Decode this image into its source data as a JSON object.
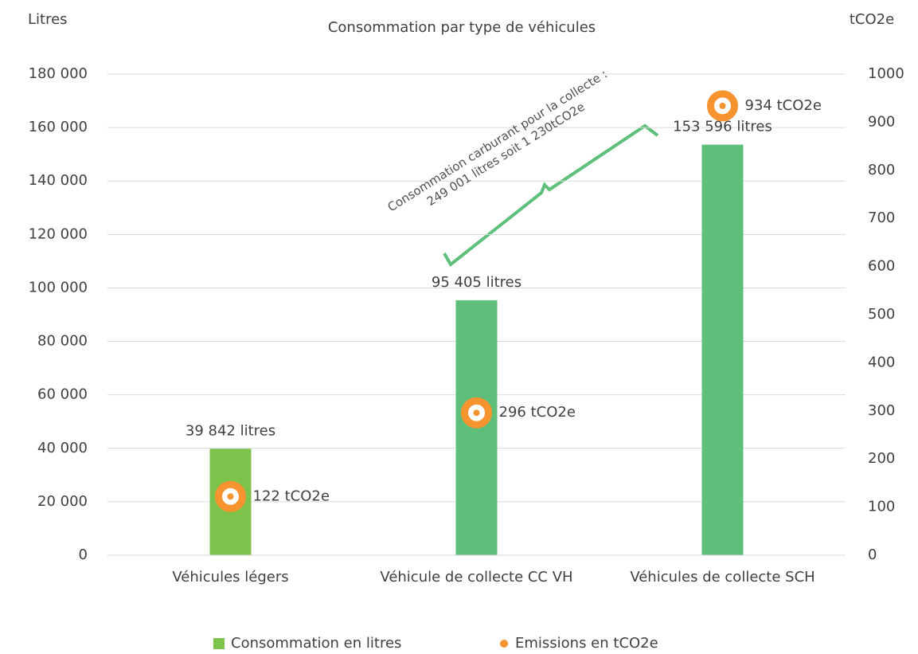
{
  "chart_data": {
    "type": "bar",
    "title": "Consommation par type de véhicules",
    "y_label": "Litres",
    "y2_label": "tCO2e",
    "categories": [
      "Véhicules légers",
      "Véhicule de collecte CC VH",
      "Véhicules de collecte SCH"
    ],
    "series": [
      {
        "name": "Consommation en litres",
        "type": "bar",
        "color": "#7dc24b",
        "colors": [
          "#7dc24b",
          "#5dbf7a",
          "#5dbf7a"
        ],
        "values": [
          39842,
          95405,
          153596
        ],
        "value_labels": [
          "39 842 litres",
          "95 405 litres",
          "153 596 litres"
        ]
      },
      {
        "name": "Emissions en tCO2e",
        "type": "scatter",
        "axis": "y2",
        "color": "#f7942f",
        "values": [
          122,
          296,
          934
        ],
        "value_labels": [
          "122 tCO2e",
          "296 tCO2e",
          "934 tCO2e"
        ]
      }
    ],
    "ylim": [
      0,
      180000
    ],
    "yticks": [
      0,
      {
        "value": 20000,
        "label": "20 000"
      },
      {
        "value": 40000,
        "label": "40 000"
      },
      {
        "value": 60000,
        "label": "60 000"
      },
      {
        "value": 80000,
        "label": "80 000"
      },
      {
        "value": 100000,
        "label": "100 000"
      },
      {
        "value": 120000,
        "label": "120 000"
      },
      {
        "value": 140000,
        "label": "140 000"
      },
      {
        "value": 160000,
        "label": "160 000"
      },
      {
        "value": 180000,
        "label": "180 000"
      }
    ],
    "y2lim": [
      0,
      1000
    ],
    "y2ticks": [
      0,
      100,
      200,
      300,
      400,
      500,
      600,
      700,
      800,
      900,
      1000
    ],
    "grid": true,
    "legend": "bottom",
    "annotation": "Consommation carburant pour la collecte : 249 001 litres soit 1 230tCO2e"
  }
}
